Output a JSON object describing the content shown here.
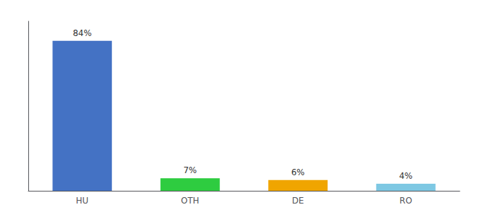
{
  "chart_data": {
    "type": "bar",
    "categories": [
      "HU",
      "OTH",
      "DE",
      "RO"
    ],
    "values": [
      84,
      7,
      6,
      4
    ],
    "value_labels": [
      "84%",
      "7%",
      "6%",
      "4%"
    ],
    "data_labels": true,
    "colors": [
      "#4472c4",
      "#2ecc40",
      "#f0a500",
      "#7ec8e3"
    ],
    "ylim": [
      0,
      95
    ],
    "grid": false,
    "tick_labels": "x"
  }
}
